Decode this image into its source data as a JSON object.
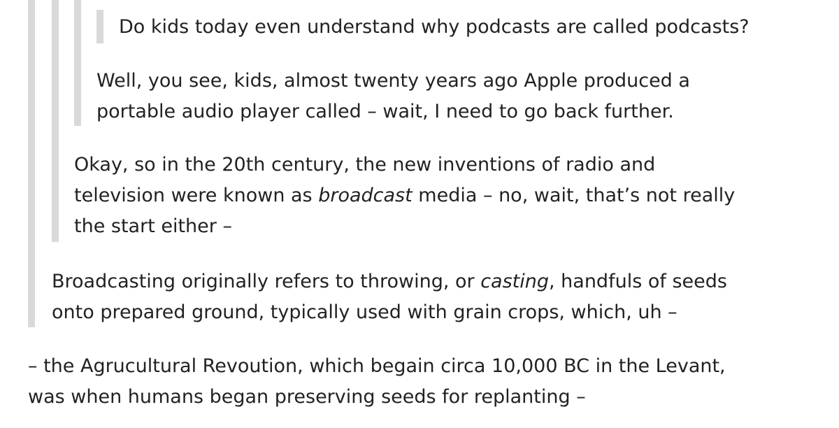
{
  "thread": {
    "post1": {
      "line1": "Do kids today even understand why podcasts are called podcasts?"
    },
    "post2": {
      "line1": "Well, you see, kids, almost twenty years ago Apple produced a",
      "line2": "portable audio player called – wait, I need to go back further."
    },
    "post3": {
      "line1": "Okay, so in the 20th century, the new inventions of radio and",
      "line2_before": "television were known as ",
      "line2_em": "broadcast",
      "line2_after": " media – no, wait, that’s not really",
      "line3": "the start either –"
    },
    "post4": {
      "line1_before": "Broadcasting originally refers to throwing, or ",
      "line1_em": "casting",
      "line1_after": ", handfuls of seeds",
      "line2": "onto prepared ground, typically used with grain crops, which, uh –"
    },
    "post5": {
      "line1": "– the Agrucultural Revoution, which begain circa 10,000 BC in the Levant,",
      "line2": "was when humans began preserving seeds for replanting –"
    }
  }
}
